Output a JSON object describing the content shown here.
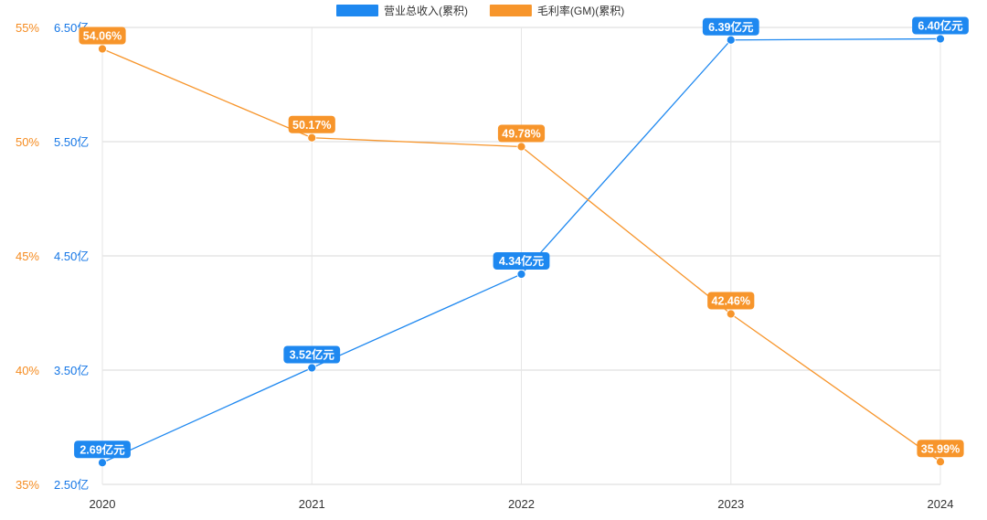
{
  "colors": {
    "revenue": "#1e88f0",
    "margin": "#f7952b",
    "grid": "#d9d9d9",
    "axis_left_outer": "#f58b1f",
    "axis_left_inner": "#1677e6"
  },
  "legend": [
    {
      "name": "营业总收入(累积)",
      "series": "revenue"
    },
    {
      "name": "毛利率(GM)(累积)",
      "series": "margin"
    }
  ],
  "chart_data": {
    "type": "line",
    "categories": [
      "2020",
      "2021",
      "2022",
      "2023",
      "2024"
    ],
    "series": [
      {
        "name": "营业总收入(累积)",
        "key": "revenue",
        "axis": "revenue",
        "values": [
          2.69,
          3.52,
          4.34,
          6.39,
          6.4
        ],
        "labels": [
          "2.69亿元",
          "3.52亿元",
          "4.34亿元",
          "6.39亿元",
          "6.40亿元"
        ]
      },
      {
        "name": "毛利率(GM)(累积)",
        "key": "margin",
        "axis": "margin",
        "values": [
          54.06,
          50.17,
          49.78,
          42.46,
          35.99
        ],
        "labels": [
          "54.06%",
          "50.17%",
          "49.78%",
          "42.46%",
          "35.99%"
        ]
      }
    ],
    "axes": {
      "margin": {
        "min": 35,
        "max": 55,
        "ticks": [
          35,
          40,
          45,
          50,
          55
        ],
        "tick_labels": [
          "35%",
          "40%",
          "45%",
          "50%",
          "55%"
        ]
      },
      "revenue": {
        "min": 2.5,
        "max": 6.5,
        "ticks": [
          2.5,
          3.5,
          4.5,
          5.5,
          6.5
        ],
        "tick_labels": [
          "2.50亿",
          "3.50亿",
          "4.50亿",
          "5.50亿",
          "6.50亿"
        ]
      }
    },
    "grid": true,
    "legend_position": "top-center"
  }
}
